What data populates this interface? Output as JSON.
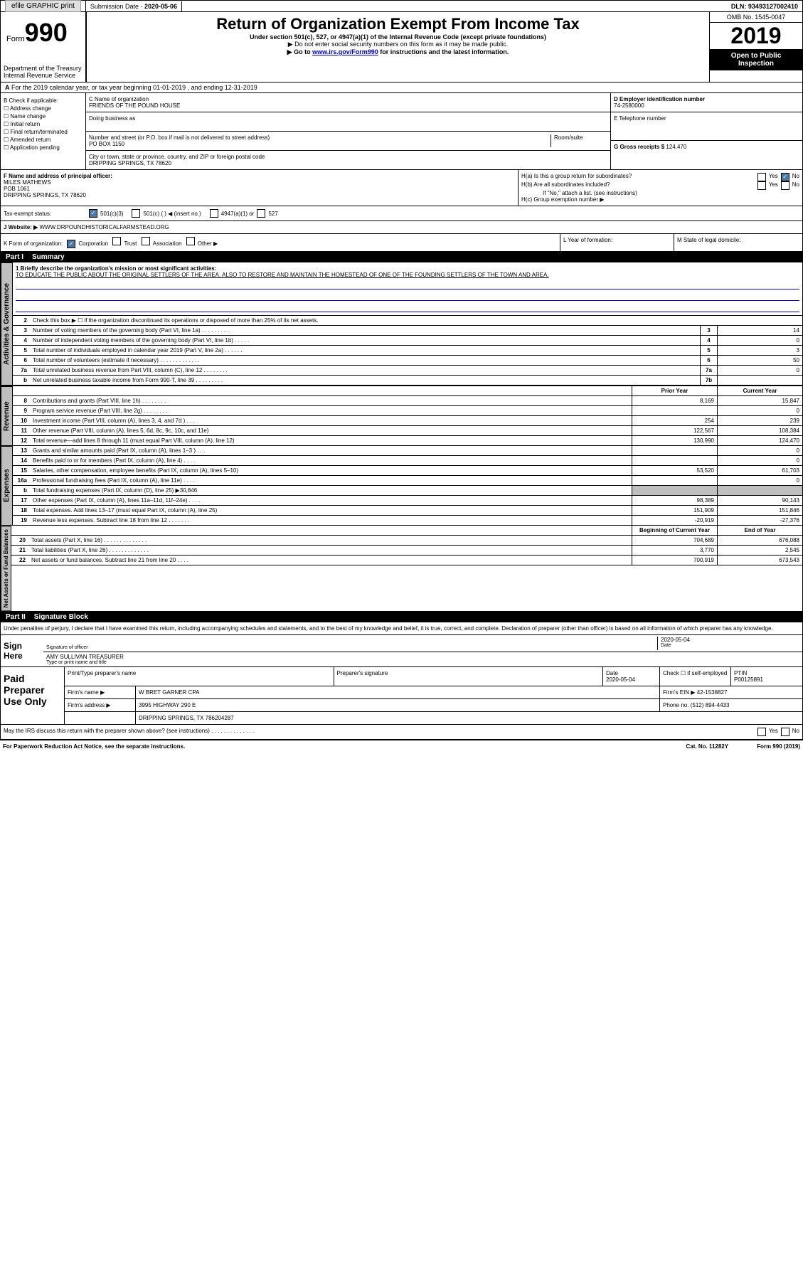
{
  "topbar": {
    "efile": "efile GRAPHIC print",
    "submission_label": "Submission Date - ",
    "submission_date": "2020-05-06",
    "dln_label": "DLN: ",
    "dln": "93493127002410"
  },
  "header": {
    "form_word": "Form",
    "form_no": "990",
    "title": "Return of Organization Exempt From Income Tax",
    "sub": "Under section 501(c), 527, or 4947(a)(1) of the Internal Revenue Code (except private foundations)",
    "note1": "▶ Do not enter social security numbers on this form as it may be made public.",
    "note2_pre": "▶ Go to ",
    "note2_link": "www.irs.gov/Form990",
    "note2_post": " for instructions and the latest information.",
    "omb": "OMB No. 1545-0047",
    "year": "2019",
    "inspect1": "Open to Public",
    "inspect2": "Inspection",
    "dept1": "Department of the Treasury",
    "dept2": "Internal Revenue Service"
  },
  "period": "For the 2019 calendar year, or tax year beginning 01-01-2019    , and ending 12-31-2019",
  "section_b": {
    "label": "B Check if applicable:",
    "opts": [
      "☐ Address change",
      "☐ Name change",
      "☐ Initial return",
      "☐ Final return/terminated",
      "☐ Amended return",
      "☐ Application pending"
    ]
  },
  "section_c": {
    "name_label": "C Name of organization",
    "name": "FRIENDS OF THE POUND HOUSE",
    "dba_label": "Doing business as",
    "addr_label": "Number and street (or P.O. box if mail is not delivered to street address)",
    "room_label": "Room/suite",
    "addr": "PO BOX 1150",
    "city_label": "City or town, state or province, country, and ZIP or foreign postal code",
    "city": "DRIPPING SPRINGS, TX  78620"
  },
  "section_d": {
    "ein_label": "D Employer identification number",
    "ein": "74-2580000",
    "phone_label": "E Telephone number",
    "gross_label": "G Gross receipts $ ",
    "gross": "124,470"
  },
  "section_f": {
    "label": "F  Name and address of principal officer:",
    "name": "MILES MATHEWS",
    "addr1": "POB 1061",
    "addr2": "DRIPPING SPRINGS, TX  78620"
  },
  "section_h": {
    "ha": "H(a)  Is this a group return for subordinates?",
    "hb": "H(b)  Are all subordinates included?",
    "hb_note": "If \"No,\" attach a list. (see instructions)",
    "hc": "H(c)  Group exemption number ▶",
    "yes": "Yes",
    "no": "No"
  },
  "tax_status": {
    "label": "Tax-exempt status:",
    "opt1": "501(c)(3)",
    "opt2": "501(c) (  ) ◀ (insert no.)",
    "opt3": "4947(a)(1) or",
    "opt4": "527"
  },
  "website": {
    "label": "Website: ▶",
    "val": "WWW.DRPOUNDHISTORICALFARMSTEAD.ORG"
  },
  "row_k": {
    "k": "K Form of organization:",
    "corp": "Corporation",
    "trust": "Trust",
    "assoc": "Association",
    "other": "Other ▶",
    "l": "L Year of formation:",
    "m": "M State of legal domicile:"
  },
  "part1": {
    "num": "Part I",
    "title": "Summary"
  },
  "mission": {
    "label": "1  Briefly describe the organization's mission or most significant activities:",
    "text": "TO EDUCATE THE PUBLIC ABOUT THE ORIGINAL SETTLERS OF THE AREA. ALSO TO RESTORE AND MAINTAIN THE HOMESTEAD OF ONE OF THE FOUNDING SETTLERS OF THE TOWN AND AREA."
  },
  "governance": {
    "label": "Activities & Governance",
    "rows": [
      {
        "n": "2",
        "d": "Check this box ▶ ☐  if the organization discontinued its operations or disposed of more than 25% of its net assets."
      },
      {
        "n": "3",
        "d": "Number of voting members of the governing body (Part VI, line 1a)  .    .    .    .    .    .    .    .    .",
        "b": "3",
        "v": "14"
      },
      {
        "n": "4",
        "d": "Number of independent voting members of the governing body (Part VI, line 1b)  .    .    .    .    .",
        "b": "4",
        "v": "0"
      },
      {
        "n": "5",
        "d": "Total number of individuals employed in calendar year 2019 (Part V, line 2a)  .    .    .    .    .    .",
        "b": "5",
        "v": "3"
      },
      {
        "n": "6",
        "d": "Total number of volunteers (estimate if necessary)   .    .    .    .    .    .    .    .    .    .    .    .    .",
        "b": "6",
        "v": "50"
      },
      {
        "n": "7a",
        "d": "Total unrelated business revenue from Part VIII, column (C), line 12  .    .    .    .    .    .    .    .",
        "b": "7a",
        "v": "0"
      },
      {
        "n": "b",
        "d": "Net unrelated business taxable income from Form 990-T, line 39   .    .    .    .    .    .    .    .    .",
        "b": "7b",
        "v": ""
      }
    ]
  },
  "col_headers": {
    "prior": "Prior Year",
    "current": "Current Year"
  },
  "revenue": {
    "label": "Revenue",
    "rows": [
      {
        "n": "8",
        "d": "Contributions and grants (Part VIII, line 1h)   .    .    .    .    .    .    .    .",
        "p": "8,169",
        "c": "15,847"
      },
      {
        "n": "9",
        "d": "Program service revenue (Part VIII, line 2g)   .    .    .    .    .    .    .    .",
        "p": "",
        "c": "0"
      },
      {
        "n": "10",
        "d": "Investment income (Part VIII, column (A), lines 3, 4, and 7d )    .    .    .",
        "p": "254",
        "c": "239"
      },
      {
        "n": "11",
        "d": "Other revenue (Part VIII, column (A), lines 5, 6d, 8c, 9c, 10c, and 11e)",
        "p": "122,567",
        "c": "108,384"
      },
      {
        "n": "12",
        "d": "Total revenue—add lines 8 through 11 (must equal Part VIII, column (A), line 12)",
        "p": "130,990",
        "c": "124,470"
      }
    ]
  },
  "expenses": {
    "label": "Expenses",
    "rows": [
      {
        "n": "13",
        "d": "Grants and similar amounts paid (Part IX, column (A), lines 1–3 )  .    .    .",
        "p": "",
        "c": "0"
      },
      {
        "n": "14",
        "d": "Benefits paid to or for members (Part IX, column (A), line 4)   .    .    .    .",
        "p": "",
        "c": "0"
      },
      {
        "n": "15",
        "d": "Salaries, other compensation, employee benefits (Part IX, column (A), lines 5–10)",
        "p": "53,520",
        "c": "61,703"
      },
      {
        "n": "16a",
        "d": "Professional fundraising fees (Part IX, column (A), line 11e)  .    .    .    .",
        "p": "",
        "c": "0"
      },
      {
        "n": "b",
        "d": "Total fundraising expenses (Part IX, column (D), line 25) ▶30,846",
        "p": "shaded",
        "c": "shaded"
      },
      {
        "n": "17",
        "d": "Other expenses (Part IX, column (A), lines 11a–11d, 11f–24e)   .    .    .    .",
        "p": "98,389",
        "c": "90,143"
      },
      {
        "n": "18",
        "d": "Total expenses. Add lines 13–17 (must equal Part IX, column (A), line 25)",
        "p": "151,909",
        "c": "151,846"
      },
      {
        "n": "19",
        "d": "Revenue less expenses. Subtract line 18 from line 12 .    .    .    .    .    .    .",
        "p": "-20,919",
        "c": "-27,376"
      }
    ]
  },
  "col_headers2": {
    "prior": "Beginning of Current Year",
    "current": "End of Year"
  },
  "netassets": {
    "label": "Net Assets or Fund Balances",
    "rows": [
      {
        "n": "20",
        "d": "Total assets (Part X, line 16)  .    .    .    .    .    .    .    .    .    .    .    .    .    .",
        "p": "704,689",
        "c": "676,088"
      },
      {
        "n": "21",
        "d": "Total liabilities (Part X, line 26)  .    .    .    .    .    .    .    .    .    .    .    .    .",
        "p": "3,770",
        "c": "2,545"
      },
      {
        "n": "22",
        "d": "Net assets or fund balances. Subtract line 21 from line 20   .    .    .    .",
        "p": "700,919",
        "c": "673,543"
      }
    ]
  },
  "part2": {
    "num": "Part II",
    "title": "Signature Block"
  },
  "sig": {
    "text": "Under penalties of perjury, I declare that I have examined this return, including accompanying schedules and statements, and to the best of my knowledge and belief, it is true, correct, and complete. Declaration of preparer (other than officer) is based on all information of which preparer has any knowledge.",
    "sign_here": "Sign Here",
    "sig_label": "Signature of officer",
    "date_label": "Date",
    "date": "2020-05-04",
    "name": "AMY SULLIVAN  TREASURER",
    "name_label": "Type or print name and title"
  },
  "prep": {
    "label": "Paid Preparer Use Only",
    "h1": "Print/Type preparer's name",
    "h2": "Preparer's signature",
    "h3": "Date",
    "h3v": "2020-05-04",
    "h4": "Check ☐  if self-employed",
    "h5": "PTIN",
    "h5v": "P00125891",
    "firm_label": "Firm's name    ▶",
    "firm": "W BRET GARNER CPA",
    "ein_label": "Firm's EIN ▶",
    "ein": "42-1538827",
    "addr_label": "Firm's address ▶",
    "addr1": "3995 HIGHWAY 290 E",
    "addr2": "DRIPPING SPRINGS, TX  786204287",
    "phone_label": "Phone no.",
    "phone": "(512) 894-4433",
    "discuss": "May the IRS discuss this return with the preparer shown above? (see instructions)    .    .    .    .    .    .    .    .    .    .    .    .    .    .",
    "yes": "Yes",
    "no": "No"
  },
  "footer": {
    "paperwork": "For Paperwork Reduction Act Notice, see the separate instructions.",
    "cat": "Cat. No. 11282Y",
    "form": "Form 990 (2019)"
  }
}
